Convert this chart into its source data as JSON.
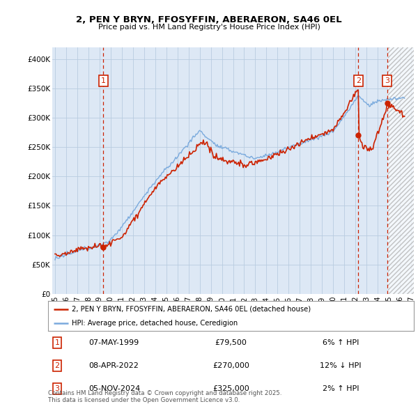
{
  "title": "2, PEN Y BRYN, FFOSYFFIN, ABERAERON, SA46 0EL",
  "subtitle": "Price paid vs. HM Land Registry's House Price Index (HPI)",
  "hpi_color": "#7aaadd",
  "price_color": "#cc2200",
  "bg_color": "#dde8f5",
  "grid_color": "#b8cce0",
  "ylim": [
    0,
    420000
  ],
  "yticks": [
    0,
    50000,
    100000,
    150000,
    200000,
    250000,
    300000,
    350000,
    400000
  ],
  "ytick_labels": [
    "£0",
    "£50K",
    "£100K",
    "£150K",
    "£200K",
    "£250K",
    "£300K",
    "£350K",
    "£400K"
  ],
  "xlim_start": 1994.75,
  "xlim_end": 2027.25,
  "xtick_years": [
    1995,
    1996,
    1997,
    1998,
    1999,
    2000,
    2001,
    2002,
    2003,
    2004,
    2005,
    2006,
    2007,
    2008,
    2009,
    2010,
    2011,
    2012,
    2013,
    2014,
    2015,
    2016,
    2017,
    2018,
    2019,
    2020,
    2021,
    2022,
    2023,
    2024,
    2025,
    2026,
    2027
  ],
  "sale_dates": [
    1999.35,
    2022.27,
    2024.84
  ],
  "sale_prices": [
    79500,
    270000,
    325000
  ],
  "sale_labels": [
    "1",
    "2",
    "3"
  ],
  "hatch_start": 2024.92,
  "legend_line1": "2, PEN Y BRYN, FFOSYFFIN, ABERAERON, SA46 0EL (detached house)",
  "legend_line2": "HPI: Average price, detached house, Ceredigion",
  "table_entries": [
    {
      "num": "1",
      "date": "07-MAY-1999",
      "price": "£79,500",
      "pct": "6% ↑ HPI"
    },
    {
      "num": "2",
      "date": "08-APR-2022",
      "price": "£270,000",
      "pct": "12% ↓ HPI"
    },
    {
      "num": "3",
      "date": "05-NOV-2024",
      "price": "£325,000",
      "pct": "2% ↑ HPI"
    }
  ],
  "footer": "Contains HM Land Registry data © Crown copyright and database right 2025.\nThis data is licensed under the Open Government Licence v3.0."
}
